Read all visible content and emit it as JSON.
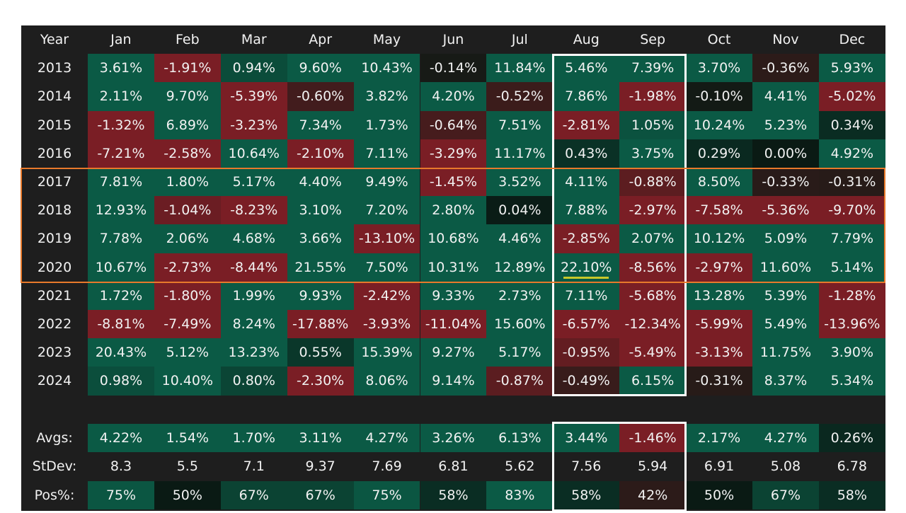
{
  "chart_data": {
    "type": "heatmap",
    "corner_label": "Year",
    "months": [
      "Jan",
      "Feb",
      "Mar",
      "Apr",
      "May",
      "Jun",
      "Jul",
      "Aug",
      "Sep",
      "Oct",
      "Nov",
      "Dec"
    ],
    "rows": [
      {
        "year": "2013",
        "values": [
          3.61,
          -1.91,
          0.94,
          9.6,
          10.43,
          -0.14,
          11.84,
          5.46,
          7.39,
          3.7,
          -0.36,
          5.93
        ]
      },
      {
        "year": "2014",
        "values": [
          2.11,
          9.7,
          -5.39,
          -0.6,
          3.82,
          4.2,
          -0.52,
          7.86,
          -1.98,
          -0.1,
          4.41,
          -5.02
        ]
      },
      {
        "year": "2015",
        "values": [
          -1.32,
          6.89,
          -3.23,
          7.34,
          1.73,
          -0.64,
          7.51,
          -2.81,
          1.05,
          10.24,
          5.23,
          0.34
        ]
      },
      {
        "year": "2016",
        "values": [
          -7.21,
          -2.58,
          10.64,
          -2.1,
          7.11,
          -3.29,
          11.17,
          0.43,
          3.75,
          0.29,
          0.0,
          4.92
        ]
      },
      {
        "year": "2017",
        "values": [
          7.81,
          1.8,
          5.17,
          4.4,
          9.49,
          -1.45,
          3.52,
          4.11,
          -0.88,
          8.5,
          -0.33,
          -0.31
        ]
      },
      {
        "year": "2018",
        "values": [
          12.93,
          -1.04,
          -8.23,
          3.1,
          7.2,
          2.8,
          0.04,
          7.88,
          -2.97,
          -7.58,
          -5.36,
          -9.7
        ]
      },
      {
        "year": "2019",
        "values": [
          7.78,
          2.06,
          4.68,
          3.66,
          -13.1,
          10.68,
          4.46,
          -2.85,
          2.07,
          10.12,
          5.09,
          7.79
        ]
      },
      {
        "year": "2020",
        "values": [
          10.67,
          -2.73,
          -8.44,
          21.55,
          7.5,
          10.31,
          12.89,
          22.1,
          -8.56,
          -2.97,
          11.6,
          5.14
        ]
      },
      {
        "year": "2021",
        "values": [
          1.72,
          -1.8,
          1.99,
          9.93,
          -2.42,
          9.33,
          2.73,
          7.11,
          -5.68,
          13.28,
          5.39,
          -1.28
        ]
      },
      {
        "year": "2022",
        "values": [
          -8.81,
          -7.49,
          8.24,
          -17.88,
          -3.93,
          -11.04,
          15.6,
          -6.57,
          -12.34,
          -5.99,
          5.49,
          -13.96
        ]
      },
      {
        "year": "2023",
        "values": [
          20.43,
          5.12,
          13.23,
          0.55,
          15.39,
          9.27,
          5.17,
          -0.95,
          -5.49,
          -3.13,
          11.75,
          3.9
        ]
      },
      {
        "year": "2024",
        "values": [
          0.98,
          10.4,
          0.8,
          -2.3,
          8.06,
          9.14,
          -0.87,
          -0.49,
          6.15,
          -0.31,
          8.37,
          5.34
        ]
      }
    ],
    "summary": {
      "avgs": {
        "label": "Avgs:",
        "values": [
          4.22,
          1.54,
          1.7,
          3.11,
          4.27,
          3.26,
          6.13,
          3.44,
          -1.46,
          2.17,
          4.27,
          0.26
        ]
      },
      "stdev": {
        "label": "StDev:",
        "values": [
          "8.3",
          "5.5",
          "7.1",
          "9.37",
          "7.69",
          "6.81",
          "5.62",
          "7.56",
          "5.94",
          "6.91",
          "5.08",
          "6.78"
        ]
      },
      "pos": {
        "label": "Pos%:",
        "values": [
          75,
          50,
          67,
          67,
          75,
          58,
          83,
          58,
          42,
          50,
          67,
          58
        ]
      }
    },
    "highlights": {
      "columns": [
        "Aug",
        "Sep"
      ],
      "column_box_color": "#ffffff",
      "rows": [
        "2017",
        "2018",
        "2019",
        "2020"
      ],
      "row_box_color": "#e8792b",
      "underlined_cell": {
        "year": "2020",
        "month": "Aug",
        "color": "#c8c82a"
      }
    },
    "colors": {
      "positive": "#0b5a45",
      "negative": "#7a1e25",
      "neutral": "#0a1a14",
      "background": "#1e1e1e",
      "text": "#f2f2f2"
    }
  }
}
